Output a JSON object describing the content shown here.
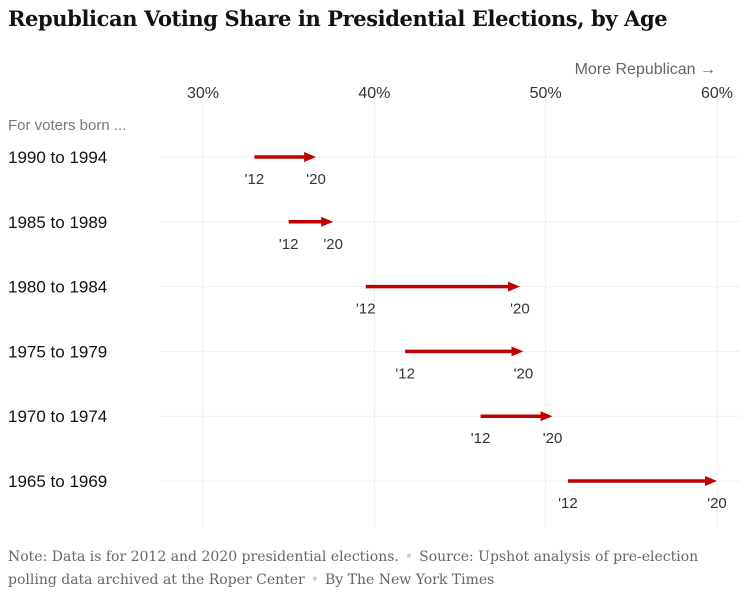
{
  "title": "Republican Voting Share in Presidential Elections, by Age",
  "direction_label": "More Republican →",
  "row_header": "For voters born ...",
  "chart_data": {
    "type": "arrow",
    "x_unit": "percent",
    "xlim": [
      24.5,
      61.5
    ],
    "xticks": [
      30,
      40,
      50,
      60
    ],
    "xtick_labels": [
      "30%",
      "40%",
      "50%",
      "60%"
    ],
    "grid": true,
    "series": [
      {
        "name": "'12",
        "values": [
          33.0,
          35.0,
          39.5,
          41.8,
          46.2,
          51.3
        ]
      },
      {
        "name": "'20",
        "values": [
          36.6,
          37.6,
          48.5,
          48.7,
          50.4,
          60.0
        ]
      }
    ],
    "categories": [
      "1990 to 1994",
      "1985 to 1989",
      "1980 to 1984",
      "1975 to 1979",
      "1970 to 1974",
      "1965 to 1969"
    ],
    "arrow_color": "#c00000"
  },
  "footer": {
    "note": "Note: Data is for 2012 and 2020 presidential elections.",
    "source": "Source: Upshot analysis of pre-election polling data archived at the Roper Center",
    "byline": "By The New York Times"
  }
}
